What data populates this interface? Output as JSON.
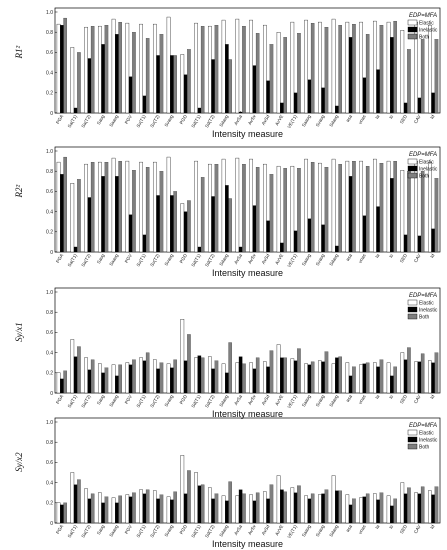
{
  "x_labels": [
    "PGA",
    "Sa(T1)",
    "Sa(T2)",
    "Savg",
    "Saavg",
    "PGV",
    "Sv(T1)",
    "Sv(T2)",
    "Svavg",
    "PGD",
    "Sd(T1)",
    "Sd(T2)",
    "Sdavg",
    "AvSa",
    "AvSv",
    "AvSd",
    "AvVE",
    "VE(T1)",
    "Saavg",
    "Svavg",
    "Sdavg",
    "asa",
    "vnas",
    "Ia",
    "Ic",
    "SED",
    "CAV",
    "Id"
  ],
  "legend": {
    "edp": "EDP=MFA",
    "labels": [
      "Elastic",
      "Inelastic",
      "Both"
    ]
  },
  "colors": {
    "Elastic": "#ffffff",
    "Inelastic": "#000000",
    "Both": "#7f7f7f"
  },
  "chart_data": [
    {
      "type": "bar",
      "ylabel": "R1²",
      "xlabel": "Intensity measure",
      "ylim": [
        0,
        1.0
      ],
      "yticks": [
        "0",
        "0.2",
        "0.4",
        "0.6",
        "0.8",
        "1.0"
      ],
      "series": [
        {
          "name": "Elastic",
          "values": [
            0.88,
            0.65,
            0.85,
            0.86,
            0.93,
            0.89,
            0.88,
            0.88,
            0.95,
            0.58,
            0.89,
            0.86,
            0.92,
            0.93,
            0.92,
            0.87,
            0.8,
            0.9,
            0.92,
            0.9,
            0.93,
            0.9,
            0.9,
            0.91,
            0.9,
            0.82,
            0.9,
            0.87
          ]
        },
        {
          "name": "Inelastic",
          "values": [
            0.87,
            0.05,
            0.54,
            0.68,
            0.78,
            0.36,
            0.17,
            0.57,
            0.57,
            0.38,
            0.05,
            0.53,
            0.68,
            0.01,
            0.47,
            0.32,
            0.1,
            0.2,
            0.33,
            0.25,
            0.07,
            0.75,
            0.35,
            0.43,
            0.75,
            0.1,
            0.15,
            0.2
          ]
        },
        {
          "name": "Both",
          "values": [
            0.94,
            0.6,
            0.86,
            0.87,
            0.9,
            0.8,
            0.74,
            0.78,
            0.57,
            0.63,
            0.86,
            0.87,
            0.53,
            0.86,
            0.79,
            0.68,
            0.75,
            0.79,
            0.89,
            0.85,
            0.87,
            0.88,
            0.78,
            0.87,
            0.91,
            0.63,
            0.73,
            0.73
          ]
        }
      ]
    },
    {
      "type": "bar",
      "ylabel": "R2²",
      "xlabel": "Intensity measure",
      "ylim": [
        0,
        1.0
      ],
      "yticks": [
        "0",
        "0.2",
        "0.4",
        "0.6",
        "0.8",
        "1.0"
      ],
      "series": [
        {
          "name": "Elastic",
          "values": [
            0.89,
            0.68,
            0.87,
            0.89,
            0.93,
            0.9,
            0.89,
            0.89,
            0.94,
            0.48,
            0.9,
            0.87,
            0.92,
            0.93,
            0.92,
            0.87,
            0.85,
            0.85,
            0.92,
            0.88,
            0.92,
            0.9,
            0.9,
            0.92,
            0.9,
            0.81,
            0.9,
            0.89
          ]
        },
        {
          "name": "Inelastic",
          "values": [
            0.77,
            0.05,
            0.54,
            0.75,
            0.75,
            0.37,
            0.17,
            0.56,
            0.56,
            0.4,
            0.05,
            0.55,
            0.66,
            0.05,
            0.46,
            0.31,
            0.09,
            0.21,
            0.33,
            0.27,
            0.06,
            0.75,
            0.36,
            0.45,
            0.73,
            0.17,
            0.16,
            0.23
          ]
        },
        {
          "name": "Both",
          "values": [
            0.94,
            0.72,
            0.89,
            0.89,
            0.9,
            0.81,
            0.84,
            0.8,
            0.6,
            0.51,
            0.74,
            0.87,
            0.53,
            0.87,
            0.84,
            0.77,
            0.83,
            0.83,
            0.89,
            0.84,
            0.87,
            0.9,
            0.85,
            0.88,
            0.9,
            0.8,
            0.8,
            0.73
          ]
        }
      ]
    },
    {
      "type": "bar",
      "ylabel": "Sy/x1",
      "xlabel": "Intensity measure",
      "ylim": [
        0,
        1.0
      ],
      "yticks": [
        "0",
        "0.2",
        "0.4",
        "0.6",
        "0.8",
        "1.0"
      ],
      "series": [
        {
          "name": "Elastic",
          "values": [
            0.2,
            0.53,
            0.35,
            0.29,
            0.28,
            0.3,
            0.35,
            0.33,
            0.29,
            0.73,
            0.35,
            0.36,
            0.29,
            0.3,
            0.3,
            0.31,
            0.48,
            0.34,
            0.29,
            0.32,
            0.29,
            0.3,
            0.28,
            0.3,
            0.3,
            0.4,
            0.31,
            0.32
          ]
        },
        {
          "name": "Inelastic",
          "values": [
            0.14,
            0.36,
            0.23,
            0.2,
            0.17,
            0.28,
            0.32,
            0.24,
            0.25,
            0.32,
            0.37,
            0.24,
            0.2,
            0.36,
            0.24,
            0.26,
            0.35,
            0.32,
            0.28,
            0.31,
            0.35,
            0.17,
            0.29,
            0.26,
            0.17,
            0.33,
            0.31,
            0.3
          ]
        },
        {
          "name": "Both",
          "values": [
            0.22,
            0.46,
            0.33,
            0.25,
            0.28,
            0.33,
            0.4,
            0.3,
            0.33,
            0.58,
            0.35,
            0.32,
            0.5,
            0.29,
            0.35,
            0.42,
            0.35,
            0.44,
            0.31,
            0.41,
            0.36,
            0.26,
            0.3,
            0.33,
            0.26,
            0.45,
            0.39,
            0.4
          ]
        }
      ]
    },
    {
      "type": "bar",
      "ylabel": "Sy/x2",
      "xlabel": "Intensity measure",
      "ylim": [
        0,
        1.0
      ],
      "yticks": [
        "0",
        "0.2",
        "0.4",
        "0.6",
        "0.8",
        "1.0"
      ],
      "series": [
        {
          "name": "Elastic",
          "values": [
            0.2,
            0.5,
            0.34,
            0.3,
            0.25,
            0.28,
            0.33,
            0.32,
            0.26,
            0.67,
            0.5,
            0.35,
            0.27,
            0.27,
            0.28,
            0.31,
            0.47,
            0.35,
            0.27,
            0.28,
            0.47,
            0.28,
            0.25,
            0.29,
            0.27,
            0.4,
            0.3,
            0.32
          ]
        },
        {
          "name": "Inelastic",
          "values": [
            0.18,
            0.38,
            0.24,
            0.2,
            0.2,
            0.26,
            0.29,
            0.24,
            0.23,
            0.29,
            0.37,
            0.24,
            0.22,
            0.33,
            0.22,
            0.24,
            0.33,
            0.3,
            0.24,
            0.29,
            0.32,
            0.18,
            0.26,
            0.23,
            0.17,
            0.29,
            0.29,
            0.28
          ]
        },
        {
          "name": "Both",
          "values": [
            0.2,
            0.43,
            0.29,
            0.26,
            0.27,
            0.3,
            0.33,
            0.28,
            0.31,
            0.52,
            0.38,
            0.29,
            0.41,
            0.29,
            0.3,
            0.38,
            0.31,
            0.37,
            0.29,
            0.33,
            0.32,
            0.24,
            0.29,
            0.3,
            0.24,
            0.35,
            0.36,
            0.36
          ]
        }
      ]
    }
  ]
}
